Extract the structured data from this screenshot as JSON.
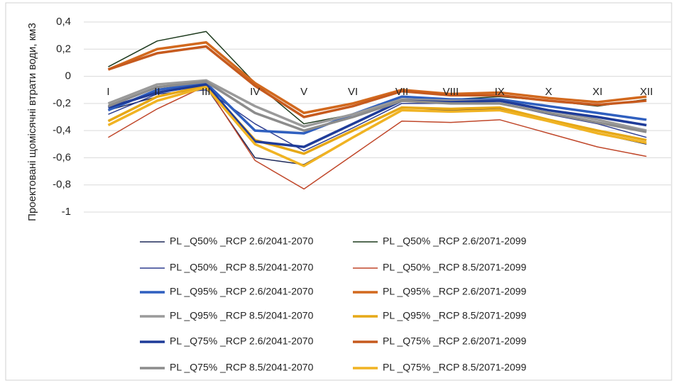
{
  "chart_data": {
    "type": "line",
    "y_label": "Проектовані щомісячні втрати води, км3",
    "categories": [
      "I",
      "II",
      "III",
      "IV",
      "V",
      "VI",
      "VII",
      "VIII",
      "IX",
      "X",
      "XI",
      "XII"
    ],
    "ylim": [
      -1,
      0.4
    ],
    "yticks": [
      {
        "value": -1,
        "label": "-1"
      },
      {
        "value": -0.8,
        "label": "-0,8"
      },
      {
        "value": -0.6,
        "label": "-0,6"
      },
      {
        "value": -0.4,
        "label": "-0,4"
      },
      {
        "value": -0.2,
        "label": "-0,2"
      },
      0,
      {
        "value": 0.2,
        "label": "0,2"
      },
      {
        "value": 0.4,
        "label": "0,4"
      }
    ],
    "grid": true,
    "series": [
      {
        "name": "PL _Q50% _RCP 2.6/2041-2070",
        "color": "#1f2a5a",
        "width": 1.5,
        "values": [
          -0.25,
          -0.15,
          -0.08,
          -0.6,
          -0.65,
          -0.45,
          -0.25,
          -0.25,
          -0.24,
          -0.33,
          -0.42,
          -0.5
        ]
      },
      {
        "name": "PL _Q50% _RCP 2.6/2071-2099",
        "color": "#1d3a1d",
        "width": 1.5,
        "values": [
          0.07,
          0.26,
          0.33,
          -0.05,
          -0.35,
          -0.28,
          -0.15,
          -0.17,
          -0.15,
          -0.18,
          -0.22,
          -0.17
        ]
      },
      {
        "name": "PL _Q50% _RCP 8.5/2041-2070",
        "color": "#2e3d8f",
        "width": 1.5,
        "values": [
          -0.28,
          -0.13,
          -0.1,
          -0.35,
          -0.55,
          -0.38,
          -0.2,
          -0.2,
          -0.2,
          -0.28,
          -0.35,
          -0.45
        ]
      },
      {
        "name": "PL _Q50% _RCP 8.5/2071-2099",
        "color": "#c0472a",
        "width": 1.5,
        "values": [
          -0.45,
          -0.24,
          -0.07,
          -0.62,
          -0.83,
          -0.58,
          -0.33,
          -0.34,
          -0.32,
          -0.42,
          -0.52,
          -0.59
        ]
      },
      {
        "name": "PL _Q95% _RCP 2.6/2041-2070",
        "color": "#2f5fbf",
        "width": 3.5,
        "values": [
          -0.25,
          -0.1,
          -0.05,
          -0.4,
          -0.42,
          -0.28,
          -0.15,
          -0.17,
          -0.17,
          -0.22,
          -0.27,
          -0.32
        ]
      },
      {
        "name": "PL _Q95% _RCP 2.6/2071-2099",
        "color": "#d2691e",
        "width": 3.5,
        "values": [
          0.05,
          0.2,
          0.25,
          -0.05,
          -0.27,
          -0.2,
          -0.1,
          -0.13,
          -0.12,
          -0.16,
          -0.19,
          -0.15
        ]
      },
      {
        "name": "PL _Q95% _RCP 8.5/2041-2070",
        "color": "#9a9a9a",
        "width": 3.5,
        "values": [
          -0.2,
          -0.06,
          -0.03,
          -0.22,
          -0.37,
          -0.28,
          -0.17,
          -0.18,
          -0.18,
          -0.25,
          -0.32,
          -0.4
        ]
      },
      {
        "name": "PL _Q95% _RCP 8.5/2071-2099",
        "color": "#e6a817",
        "width": 3.5,
        "values": [
          -0.33,
          -0.15,
          -0.07,
          -0.47,
          -0.57,
          -0.4,
          -0.23,
          -0.24,
          -0.23,
          -0.32,
          -0.4,
          -0.47
        ]
      },
      {
        "name": "PL _Q75% _RCP 2.6/2041-2070",
        "color": "#1f3c99",
        "width": 3.5,
        "values": [
          -0.23,
          -0.12,
          -0.06,
          -0.48,
          -0.52,
          -0.35,
          -0.18,
          -0.19,
          -0.18,
          -0.25,
          -0.3,
          -0.36
        ]
      },
      {
        "name": "PL _Q75% _RCP 2.6/2071-2099",
        "color": "#c65a1e",
        "width": 3.5,
        "values": [
          0.05,
          0.17,
          0.22,
          -0.07,
          -0.3,
          -0.22,
          -0.11,
          -0.14,
          -0.14,
          -0.18,
          -0.21,
          -0.18
        ]
      },
      {
        "name": "PL _Q75% _RCP 8.5/2041-2070",
        "color": "#8c8c8c",
        "width": 3.5,
        "values": [
          -0.22,
          -0.08,
          -0.04,
          -0.27,
          -0.4,
          -0.3,
          -0.18,
          -0.2,
          -0.2,
          -0.27,
          -0.34,
          -0.41
        ]
      },
      {
        "name": "PL _Q75% _RCP 8.5/2071-2099",
        "color": "#f0b323",
        "width": 3.5,
        "values": [
          -0.36,
          -0.18,
          -0.08,
          -0.5,
          -0.66,
          -0.45,
          -0.25,
          -0.26,
          -0.25,
          -0.33,
          -0.42,
          -0.49
        ]
      }
    ]
  }
}
